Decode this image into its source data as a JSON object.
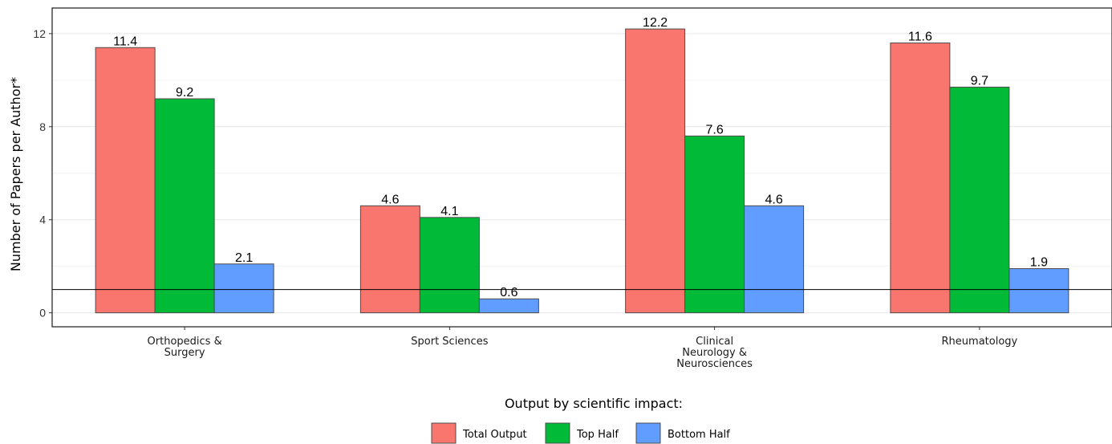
{
  "chart_data": {
    "type": "bar",
    "ylabel": "Number of Papers per Author*",
    "xlabel": "",
    "ylim": [
      -0.6,
      13.1
    ],
    "yticks": [
      0,
      4,
      8,
      12
    ],
    "reference_line_y": 1,
    "grid": true,
    "categories": [
      [
        "Orthopedics &",
        "Surgery"
      ],
      [
        "Sport Sciences"
      ],
      [
        "Clinical",
        "Neurology &",
        "Neurosciences"
      ],
      [
        "Rheumatology"
      ]
    ],
    "series": [
      {
        "name": "Total Output",
        "color": "#F8766D",
        "values": [
          11.4,
          4.6,
          12.2,
          11.6
        ]
      },
      {
        "name": "Top Half",
        "color": "#00BA38",
        "values": [
          9.2,
          4.1,
          7.6,
          9.7
        ]
      },
      {
        "name": "Bottom Half",
        "color": "#619CFF",
        "values": [
          2.1,
          0.6,
          4.6,
          1.9
        ]
      }
    ],
    "value_labels": [
      [
        "11.4",
        "4.6",
        "12.2",
        "11.6"
      ],
      [
        "9.2",
        "4.1",
        "7.6",
        "9.7"
      ],
      [
        "2.1",
        "0.6",
        "4.6",
        "1.9"
      ]
    ],
    "legend": {
      "title": "Output by scientific impact:",
      "placement": "bottom"
    }
  }
}
